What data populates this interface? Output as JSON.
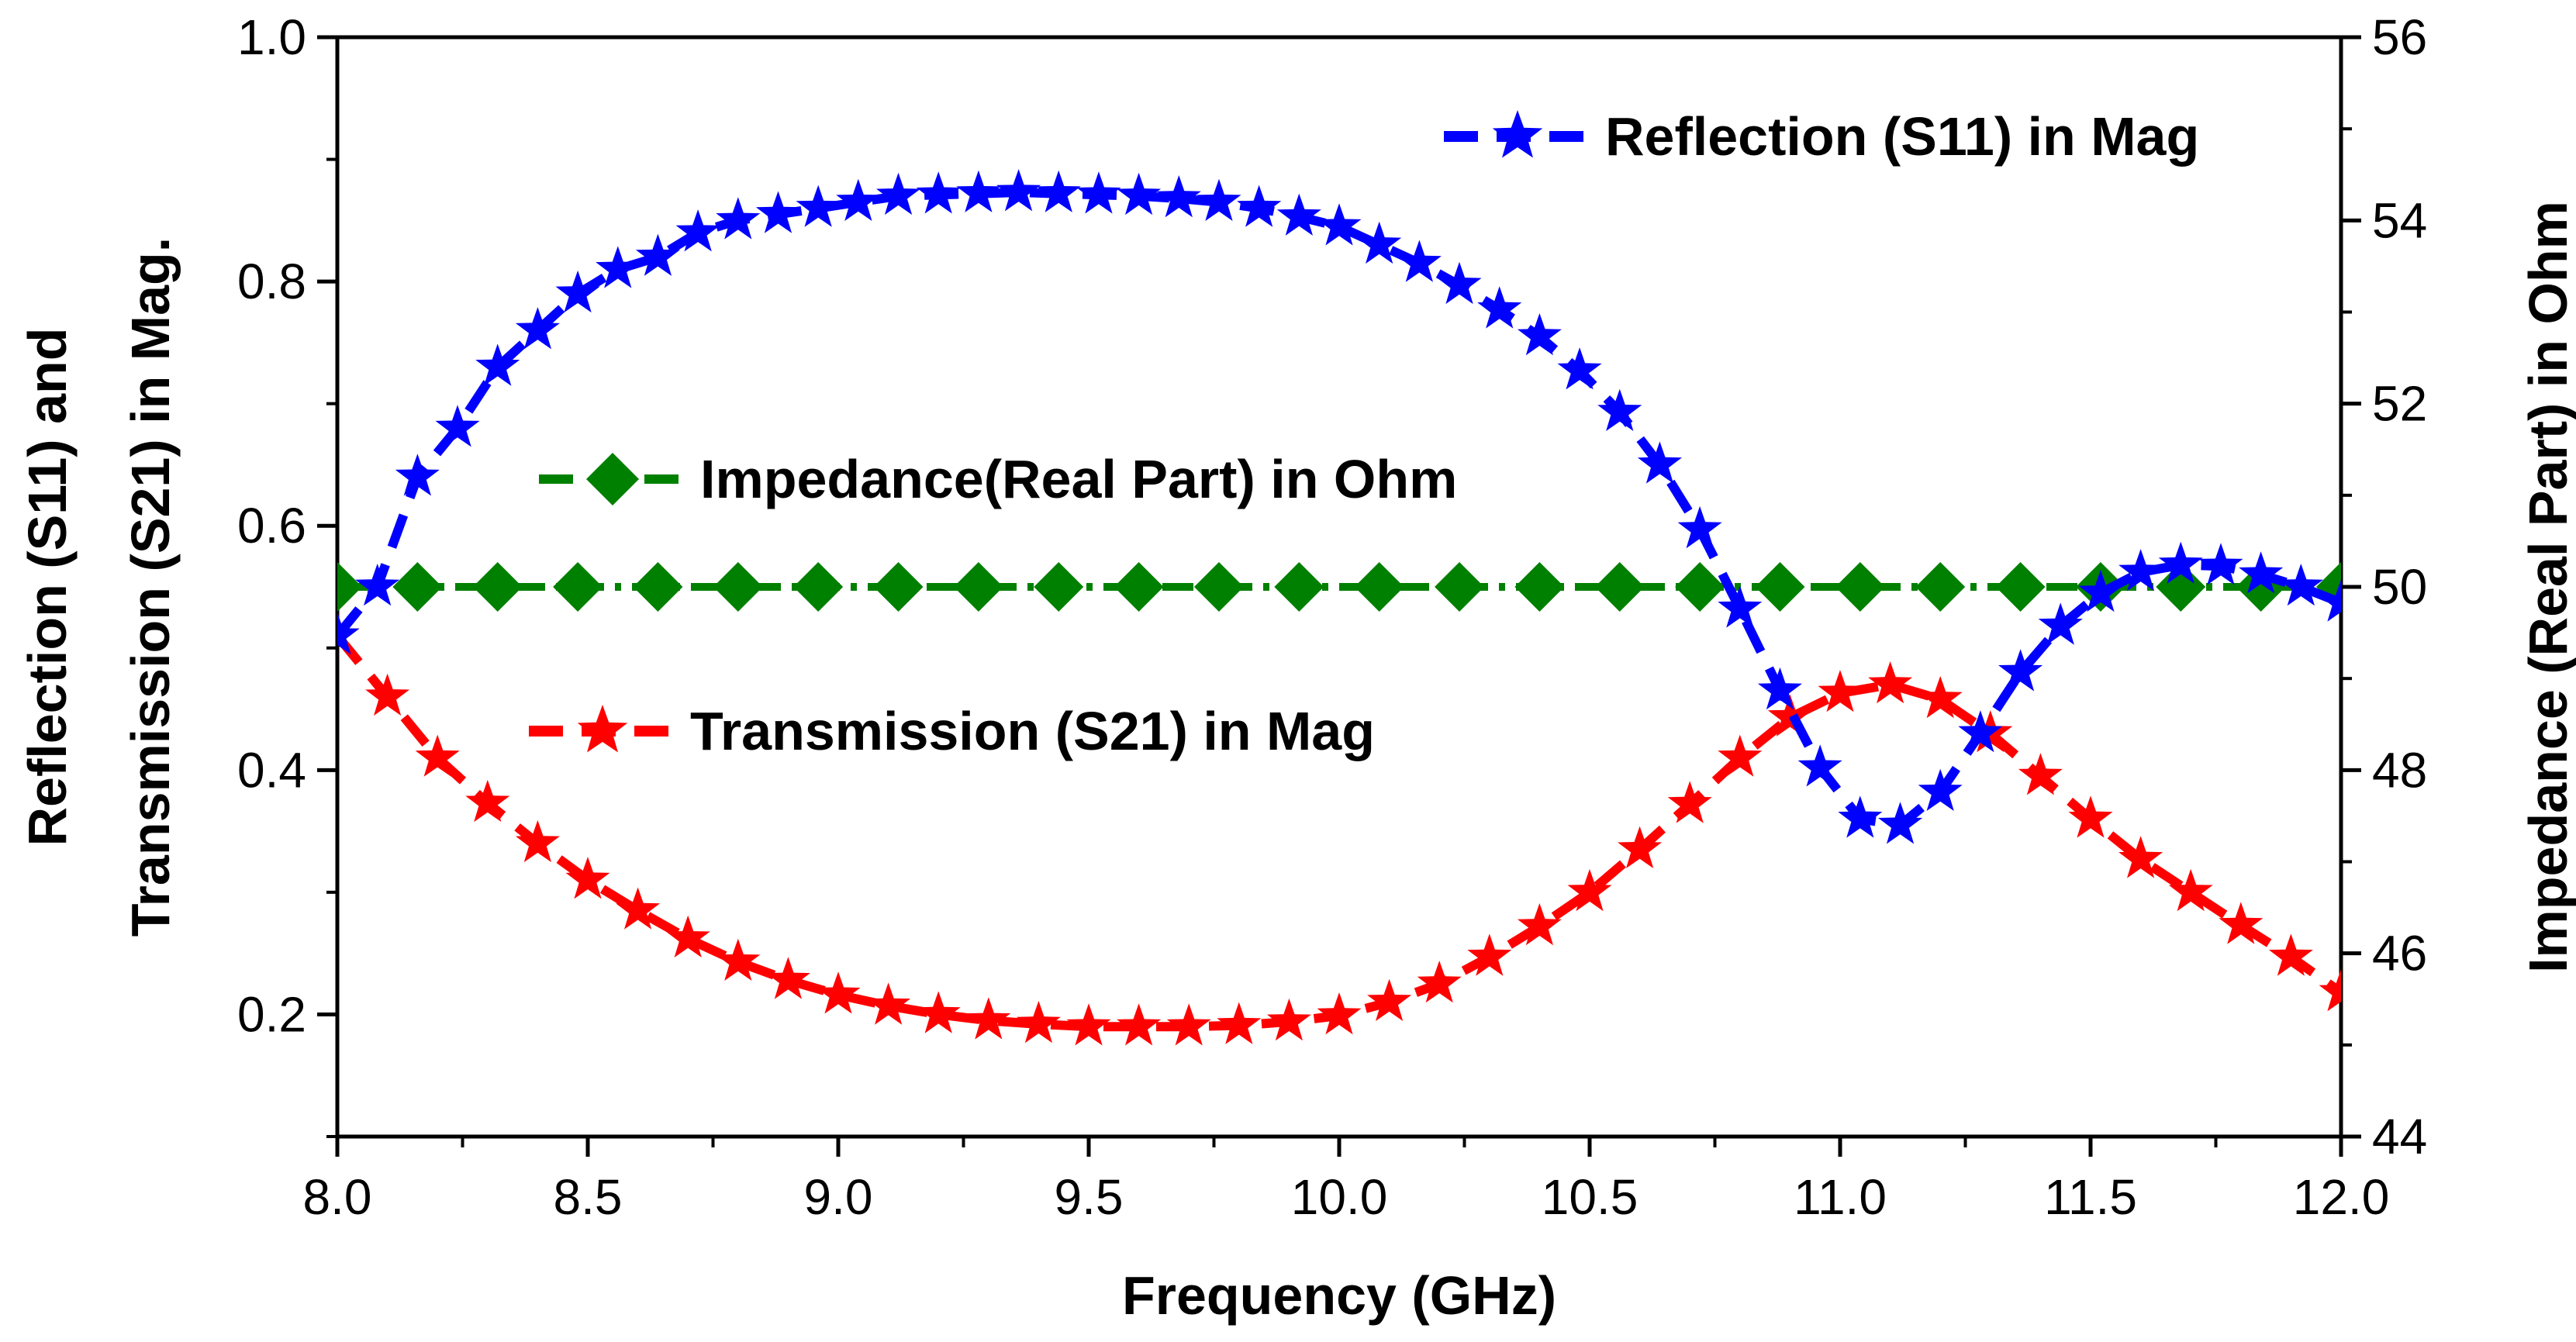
{
  "chart_data": {
    "type": "line",
    "xlabel": "Frequency (GHz)",
    "ylabel_left_line1": "Reflection (S11) and",
    "ylabel_left_line2": "Transmission (S21) in Mag.",
    "ylabel_right": "Impedance (Real Part) in Ohm",
    "xlim": [
      8.0,
      12.0
    ],
    "ylim_left": [
      0.1,
      1.0
    ],
    "ylim_right": [
      44,
      56
    ],
    "x_ticks": [
      "8.0",
      "8.5",
      "9.0",
      "9.5",
      "10.0",
      "10.5",
      "11.0",
      "11.5",
      "12.0"
    ],
    "y_left_ticks": [
      "0.2",
      "0.4",
      "0.6",
      "0.8",
      "1.0"
    ],
    "y_right_ticks": [
      "44",
      "46",
      "48",
      "50",
      "52",
      "54",
      "56"
    ],
    "grid": false,
    "series": [
      {
        "name": "Reflection (S11) in Mag",
        "axis": "left",
        "color": "#0000ff",
        "marker": "star",
        "line_style": "dashed",
        "x": [
          8.0,
          8.08,
          8.16,
          8.24,
          8.32,
          8.4,
          8.48,
          8.56,
          8.64,
          8.72,
          8.8,
          8.88,
          8.96,
          9.04,
          9.12,
          9.2,
          9.28,
          9.36,
          9.44,
          9.52,
          9.6,
          9.68,
          9.76,
          9.84,
          9.92,
          10.0,
          10.08,
          10.16,
          10.24,
          10.32,
          10.4,
          10.48,
          10.56,
          10.64,
          10.72,
          10.8,
          10.88,
          10.96,
          11.04,
          11.12,
          11.2,
          11.28,
          11.36,
          11.44,
          11.52,
          11.6,
          11.68,
          11.76,
          11.84,
          11.92,
          12.0
        ],
        "values": [
          0.51,
          0.55,
          0.64,
          0.68,
          0.73,
          0.76,
          0.79,
          0.81,
          0.82,
          0.84,
          0.85,
          0.855,
          0.86,
          0.865,
          0.87,
          0.871,
          0.872,
          0.873,
          0.872,
          0.871,
          0.87,
          0.868,
          0.865,
          0.86,
          0.853,
          0.845,
          0.83,
          0.815,
          0.797,
          0.777,
          0.755,
          0.727,
          0.693,
          0.65,
          0.597,
          0.532,
          0.465,
          0.402,
          0.36,
          0.355,
          0.382,
          0.43,
          0.48,
          0.518,
          0.545,
          0.562,
          0.568,
          0.567,
          0.56,
          0.55,
          0.537
        ]
      },
      {
        "name": "Impedance(Real Part) in Ohm",
        "axis": "right",
        "color": "#008000",
        "marker": "diamond",
        "line_style": "dash-dot",
        "x": [
          8.0,
          8.16,
          8.32,
          8.48,
          8.64,
          8.8,
          8.96,
          9.12,
          9.28,
          9.44,
          9.6,
          9.76,
          9.92,
          10.08,
          10.24,
          10.4,
          10.56,
          10.72,
          10.88,
          11.04,
          11.2,
          11.36,
          11.52,
          11.68,
          11.84,
          12.0
        ],
        "values": [
          50,
          50,
          50,
          50,
          50,
          50,
          50,
          50,
          50,
          50,
          50,
          50,
          50,
          50,
          50,
          50,
          50,
          50,
          50,
          50,
          50,
          50,
          50,
          50,
          50,
          50
        ]
      },
      {
        "name": "Transmission (S21) in Mag",
        "axis": "left",
        "color": "#ff0000",
        "marker": "star",
        "line_style": "dashed",
        "x": [
          8.0,
          8.1,
          8.2,
          8.3,
          8.4,
          8.5,
          8.6,
          8.7,
          8.8,
          8.9,
          9.0,
          9.1,
          9.2,
          9.3,
          9.4,
          9.5,
          9.6,
          9.7,
          9.8,
          9.9,
          10.0,
          10.1,
          10.2,
          10.3,
          10.4,
          10.5,
          10.6,
          10.7,
          10.8,
          10.9,
          11.0,
          11.1,
          11.2,
          11.3,
          11.4,
          11.5,
          11.6,
          11.7,
          11.8,
          11.9,
          12.0
        ],
        "values": [
          0.51,
          0.46,
          0.41,
          0.373,
          0.34,
          0.31,
          0.285,
          0.262,
          0.243,
          0.228,
          0.216,
          0.207,
          0.2,
          0.195,
          0.192,
          0.19,
          0.19,
          0.19,
          0.191,
          0.194,
          0.199,
          0.21,
          0.225,
          0.247,
          0.272,
          0.3,
          0.335,
          0.372,
          0.41,
          0.443,
          0.463,
          0.47,
          0.458,
          0.43,
          0.395,
          0.36,
          0.327,
          0.3,
          0.273,
          0.247,
          0.218
        ]
      }
    ]
  }
}
